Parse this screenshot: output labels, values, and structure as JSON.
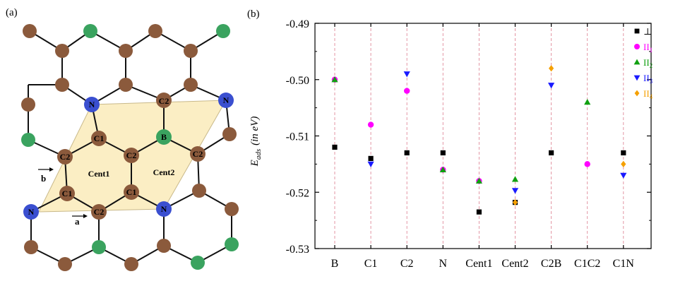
{
  "panel_a": {
    "label": "(a)",
    "atom_labels": {
      "N_top_left": "N",
      "C2_top": "C2",
      "N_top_right": "N",
      "C1_upper": "C1",
      "B": "B",
      "C2_left": "C2",
      "C2_center": "C2",
      "C2_right": "C2",
      "C1_lower_left": "C1",
      "C1_lower_right": "C1",
      "N_bottom_left": "N",
      "C2_bottom": "C2",
      "N_bottom_right": "N"
    },
    "cent1": "Cent1",
    "cent2": "Cent2",
    "vec_a": "a",
    "vec_b": "b",
    "colors": {
      "carbon": "#8b5a3c",
      "boron": "#3aa35f",
      "nitrogen": "#3a4fd0",
      "cell_fill": "#fbeec4"
    }
  },
  "panel_b": {
    "label": "(b)",
    "ylabel_main": "E",
    "ylabel_sub": "ads",
    "ylabel_unit": "(in eV)",
    "ytick_labels": [
      "-0.49",
      "-0.50",
      "-0.51",
      "-0.52",
      "-0.53"
    ],
    "legend": [
      {
        "symbol": "■",
        "label": "⊥",
        "color": "#000000"
      },
      {
        "symbol": "●",
        "label": "II",
        "sub": "1",
        "color": "#ff00ff"
      },
      {
        "symbol": "▲",
        "label": "II",
        "sub": "2",
        "color": "#10a010"
      },
      {
        "symbol": "▼",
        "label": "II",
        "sub": "3",
        "color": "#1a1aff"
      },
      {
        "symbol": "◆",
        "label": "II",
        "sub": "4",
        "color": "#f5a000"
      }
    ]
  },
  "chart_data": {
    "type": "scatter",
    "categories": [
      "B",
      "C1",
      "C2",
      "N",
      "Cent1",
      "Cent2",
      "C2B",
      "C1C2",
      "C1N"
    ],
    "ylim": [
      -0.53,
      -0.49
    ],
    "xlabel": "",
    "ylabel": "E_ads (in eV)",
    "grid": "vertical dashed lines at categories",
    "legend_position": "top-right",
    "series": [
      {
        "name": "⊥",
        "marker": "square",
        "color": "#000000",
        "values": [
          -0.512,
          -0.514,
          -0.513,
          -0.513,
          -0.5235,
          -0.5218,
          -0.513,
          null,
          -0.513
        ]
      },
      {
        "name": "II1",
        "marker": "circle",
        "color": "#ff00ff",
        "values": [
          -0.5,
          -0.508,
          -0.502,
          -0.516,
          -0.518,
          null,
          null,
          -0.515,
          null
        ]
      },
      {
        "name": "II2",
        "marker": "triangle-up",
        "color": "#10a010",
        "values": [
          -0.5,
          null,
          null,
          -0.516,
          -0.518,
          -0.5177,
          null,
          -0.504,
          null
        ]
      },
      {
        "name": "II3",
        "marker": "triangle-down",
        "color": "#1a1aff",
        "values": [
          null,
          -0.515,
          -0.499,
          null,
          null,
          -0.5197,
          -0.501,
          null,
          -0.517
        ]
      },
      {
        "name": "II4",
        "marker": "diamond",
        "color": "#f5a000",
        "values": [
          null,
          null,
          null,
          null,
          null,
          -0.5218,
          -0.498,
          null,
          -0.515
        ]
      }
    ]
  }
}
